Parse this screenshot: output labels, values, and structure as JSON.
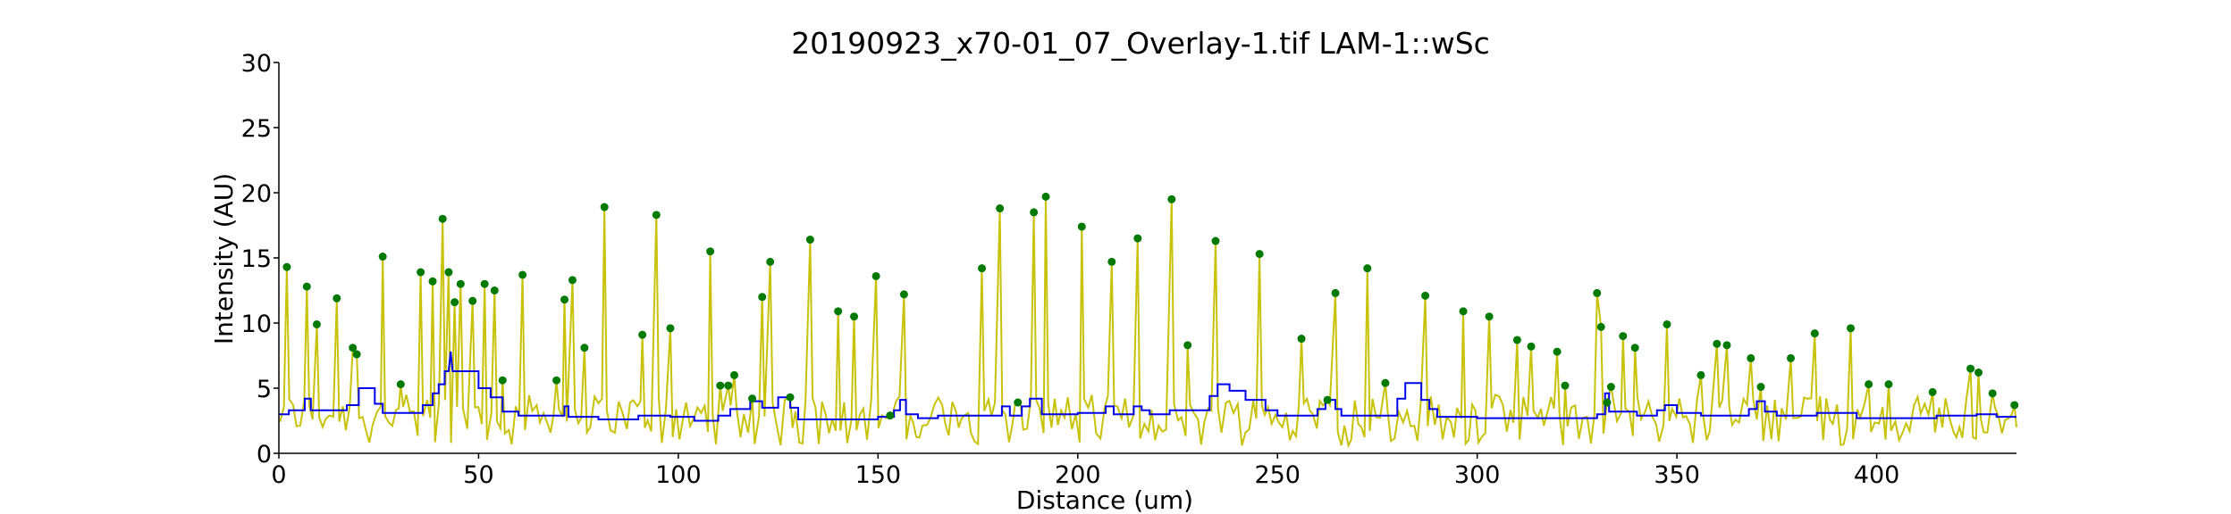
{
  "chart_data": {
    "type": "line",
    "title": "20190923_x70-01_07_Overlay-1.tif LAM-1::wSc",
    "xlabel": "Distance (um)",
    "ylabel": "Intensity (AU)",
    "xlim": [
      0,
      435
    ],
    "ylim": [
      0,
      30
    ],
    "x_ticks": [
      "0",
      "50",
      "100",
      "150",
      "200",
      "250",
      "300",
      "350",
      "400"
    ],
    "y_ticks": [
      "0",
      "5",
      "10",
      "15",
      "20",
      "25",
      "30"
    ],
    "grid": false,
    "legend": "none",
    "colors": {
      "signal": "#c8c20a",
      "baseline": "#0000ee",
      "peaks": "#007a00",
      "axis": "#000000"
    },
    "peaks": [
      {
        "x": 2,
        "y": 14.3
      },
      {
        "x": 7,
        "y": 12.8
      },
      {
        "x": 9.5,
        "y": 9.9
      },
      {
        "x": 14.5,
        "y": 11.9
      },
      {
        "x": 18.5,
        "y": 8.1
      },
      {
        "x": 19.5,
        "y": 7.6
      },
      {
        "x": 26,
        "y": 15.1
      },
      {
        "x": 30.5,
        "y": 5.3
      },
      {
        "x": 35.5,
        "y": 13.9
      },
      {
        "x": 38.5,
        "y": 13.2
      },
      {
        "x": 41,
        "y": 18
      },
      {
        "x": 42.5,
        "y": 13.9
      },
      {
        "x": 44,
        "y": 11.6
      },
      {
        "x": 45.5,
        "y": 13
      },
      {
        "x": 48.5,
        "y": 11.7
      },
      {
        "x": 51.5,
        "y": 13
      },
      {
        "x": 54,
        "y": 12.5
      },
      {
        "x": 56,
        "y": 5.6
      },
      {
        "x": 61,
        "y": 13.7
      },
      {
        "x": 69.5,
        "y": 5.6
      },
      {
        "x": 71.5,
        "y": 11.8
      },
      {
        "x": 73.5,
        "y": 13.3
      },
      {
        "x": 76.5,
        "y": 8.1
      },
      {
        "x": 81.5,
        "y": 18.9
      },
      {
        "x": 91,
        "y": 9.1
      },
      {
        "x": 94.5,
        "y": 18.3
      },
      {
        "x": 98,
        "y": 9.6
      },
      {
        "x": 108,
        "y": 15.5
      },
      {
        "x": 110.5,
        "y": 5.2
      },
      {
        "x": 112.5,
        "y": 5.2
      },
      {
        "x": 114,
        "y": 6
      },
      {
        "x": 118.5,
        "y": 4.2
      },
      {
        "x": 121,
        "y": 12
      },
      {
        "x": 123,
        "y": 14.7
      },
      {
        "x": 128,
        "y": 4.3
      },
      {
        "x": 133,
        "y": 16.4
      },
      {
        "x": 140,
        "y": 10.9
      },
      {
        "x": 144,
        "y": 10.5
      },
      {
        "x": 149.5,
        "y": 13.6
      },
      {
        "x": 153,
        "y": 2.9
      },
      {
        "x": 156.5,
        "y": 12.2
      },
      {
        "x": 176,
        "y": 14.2
      },
      {
        "x": 180.5,
        "y": 18.8
      },
      {
        "x": 185,
        "y": 3.9
      },
      {
        "x": 189,
        "y": 18.5
      },
      {
        "x": 192,
        "y": 19.7
      },
      {
        "x": 201,
        "y": 17.4
      },
      {
        "x": 208.5,
        "y": 14.7
      },
      {
        "x": 215,
        "y": 16.5
      },
      {
        "x": 227.5,
        "y": 8.3
      },
      {
        "x": 223.5,
        "y": 19.5
      },
      {
        "x": 234.5,
        "y": 16.3
      },
      {
        "x": 245.5,
        "y": 15.3
      },
      {
        "x": 256,
        "y": 8.8
      },
      {
        "x": 262.5,
        "y": 4.1
      },
      {
        "x": 264.5,
        "y": 12.3
      },
      {
        "x": 272.5,
        "y": 14.2
      },
      {
        "x": 277,
        "y": 5.4
      },
      {
        "x": 287,
        "y": 12.1
      },
      {
        "x": 296.5,
        "y": 10.9
      },
      {
        "x": 303,
        "y": 10.5
      },
      {
        "x": 310,
        "y": 8.7
      },
      {
        "x": 313.5,
        "y": 8.2
      },
      {
        "x": 320,
        "y": 7.8
      },
      {
        "x": 322,
        "y": 5.2
      },
      {
        "x": 330,
        "y": 12.3
      },
      {
        "x": 331,
        "y": 9.7
      },
      {
        "x": 332.5,
        "y": 3.9
      },
      {
        "x": 333.5,
        "y": 5.1
      },
      {
        "x": 336.5,
        "y": 9
      },
      {
        "x": 339.5,
        "y": 8.1
      },
      {
        "x": 347.5,
        "y": 9.9
      },
      {
        "x": 356,
        "y": 6
      },
      {
        "x": 360,
        "y": 8.4
      },
      {
        "x": 362.5,
        "y": 8.3
      },
      {
        "x": 368.5,
        "y": 7.3
      },
      {
        "x": 371,
        "y": 5.1
      },
      {
        "x": 378.5,
        "y": 7.3
      },
      {
        "x": 384.5,
        "y": 9.2
      },
      {
        "x": 393.5,
        "y": 9.6
      },
      {
        "x": 398,
        "y": 5.3
      },
      {
        "x": 403,
        "y": 5.3
      },
      {
        "x": 414,
        "y": 4.7
      },
      {
        "x": 423.5,
        "y": 6.5
      },
      {
        "x": 425.5,
        "y": 6.2
      },
      {
        "x": 429,
        "y": 4.6
      },
      {
        "x": 434.5,
        "y": 3.7
      }
    ],
    "baseline": [
      [
        0,
        3.0
      ],
      [
        2.5,
        3.0
      ],
      [
        2.5,
        3.3
      ],
      [
        6.5,
        3.3
      ],
      [
        6.5,
        4.2
      ],
      [
        8,
        4.2
      ],
      [
        8,
        3.3
      ],
      [
        17,
        3.3
      ],
      [
        17,
        3.7
      ],
      [
        20,
        3.7
      ],
      [
        20,
        5.0
      ],
      [
        24,
        5.0
      ],
      [
        24,
        3.8
      ],
      [
        26,
        3.8
      ],
      [
        26,
        3.1
      ],
      [
        36,
        3.1
      ],
      [
        36,
        3.7
      ],
      [
        38.5,
        3.7
      ],
      [
        38.5,
        4.6
      ],
      [
        40,
        4.6
      ],
      [
        40,
        5.3
      ],
      [
        41.5,
        5.3
      ],
      [
        41.5,
        6.3
      ],
      [
        42.5,
        6.3
      ],
      [
        43,
        7.8
      ],
      [
        43.5,
        6.3
      ],
      [
        50,
        6.3
      ],
      [
        50,
        5.0
      ],
      [
        53,
        5.0
      ],
      [
        53,
        4.3
      ],
      [
        56,
        4.3
      ],
      [
        56,
        3.2
      ],
      [
        60,
        3.2
      ],
      [
        60,
        2.9
      ],
      [
        71.5,
        2.9
      ],
      [
        71.5,
        3.6
      ],
      [
        72.5,
        3.6
      ],
      [
        72.5,
        2.8
      ],
      [
        80,
        2.8
      ],
      [
        80,
        2.6
      ],
      [
        90,
        2.6
      ],
      [
        90,
        2.9
      ],
      [
        98,
        2.9
      ],
      [
        98,
        2.8
      ],
      [
        104,
        2.8
      ],
      [
        104,
        2.5
      ],
      [
        110,
        2.5
      ],
      [
        110,
        2.9
      ],
      [
        113,
        2.9
      ],
      [
        113,
        3.4
      ],
      [
        118,
        3.4
      ],
      [
        118,
        4.0
      ],
      [
        121,
        4.0
      ],
      [
        121,
        3.5
      ],
      [
        125,
        3.5
      ],
      [
        125,
        4.3
      ],
      [
        128,
        4.3
      ],
      [
        128,
        3.5
      ],
      [
        130,
        3.5
      ],
      [
        130,
        2.6
      ],
      [
        150,
        2.6
      ],
      [
        150,
        2.8
      ],
      [
        154,
        2.8
      ],
      [
        154,
        3.3
      ],
      [
        155.5,
        3.3
      ],
      [
        155.5,
        4.1
      ],
      [
        157,
        4.1
      ],
      [
        157,
        3.0
      ],
      [
        160,
        3.0
      ],
      [
        160,
        2.7
      ],
      [
        165,
        2.7
      ],
      [
        165,
        2.9
      ],
      [
        181,
        2.9
      ],
      [
        181,
        3.6
      ],
      [
        183,
        3.6
      ],
      [
        183,
        2.9
      ],
      [
        186,
        2.9
      ],
      [
        186,
        3.6
      ],
      [
        188,
        3.6
      ],
      [
        188,
        4.2
      ],
      [
        191,
        4.2
      ],
      [
        191,
        3.0
      ],
      [
        200,
        3.0
      ],
      [
        200,
        3.1
      ],
      [
        207,
        3.1
      ],
      [
        207,
        3.6
      ],
      [
        209,
        3.6
      ],
      [
        209,
        3.0
      ],
      [
        214,
        3.0
      ],
      [
        214,
        3.6
      ],
      [
        216,
        3.6
      ],
      [
        216,
        3.3
      ],
      [
        218,
        3.3
      ],
      [
        218,
        3.0
      ],
      [
        223,
        3.0
      ],
      [
        223,
        3.3
      ],
      [
        233,
        3.3
      ],
      [
        233,
        4.4
      ],
      [
        235,
        4.4
      ],
      [
        235,
        5.3
      ],
      [
        238,
        5.3
      ],
      [
        238,
        4.8
      ],
      [
        242,
        4.8
      ],
      [
        242,
        4.1
      ],
      [
        247,
        4.1
      ],
      [
        247,
        3.3
      ],
      [
        250,
        3.3
      ],
      [
        250,
        2.9
      ],
      [
        260,
        2.9
      ],
      [
        260,
        3.4
      ],
      [
        262,
        3.4
      ],
      [
        262,
        4.1
      ],
      [
        264.5,
        4.1
      ],
      [
        264.5,
        3.4
      ],
      [
        266,
        3.4
      ],
      [
        266,
        2.9
      ],
      [
        280,
        2.9
      ],
      [
        280,
        4.2
      ],
      [
        282,
        4.2
      ],
      [
        282,
        5.4
      ],
      [
        286,
        5.4
      ],
      [
        286,
        4.1
      ],
      [
        288,
        4.1
      ],
      [
        288,
        3.4
      ],
      [
        290,
        3.4
      ],
      [
        290,
        2.8
      ],
      [
        300,
        2.8
      ],
      [
        300,
        2.7
      ],
      [
        330,
        2.7
      ],
      [
        330,
        3.0
      ],
      [
        332,
        3.0
      ],
      [
        332,
        4.6
      ],
      [
        333,
        4.6
      ],
      [
        333,
        3.2
      ],
      [
        340,
        3.2
      ],
      [
        340,
        2.9
      ],
      [
        345,
        2.9
      ],
      [
        345,
        3.3
      ],
      [
        347,
        3.3
      ],
      [
        347,
        3.7
      ],
      [
        350,
        3.7
      ],
      [
        350,
        3.1
      ],
      [
        356,
        3.1
      ],
      [
        356,
        2.9
      ],
      [
        368,
        2.9
      ],
      [
        368,
        3.4
      ],
      [
        370,
        3.4
      ],
      [
        370,
        4.0
      ],
      [
        372,
        4.0
      ],
      [
        372,
        3.2
      ],
      [
        375,
        3.2
      ],
      [
        375,
        2.9
      ],
      [
        385,
        2.9
      ],
      [
        385,
        3.1
      ],
      [
        395,
        3.1
      ],
      [
        395,
        2.7
      ],
      [
        415,
        2.7
      ],
      [
        415,
        2.9
      ],
      [
        425,
        2.9
      ],
      [
        425,
        3.0
      ],
      [
        430,
        3.0
      ],
      [
        430,
        2.8
      ],
      [
        435,
        2.8
      ]
    ]
  }
}
